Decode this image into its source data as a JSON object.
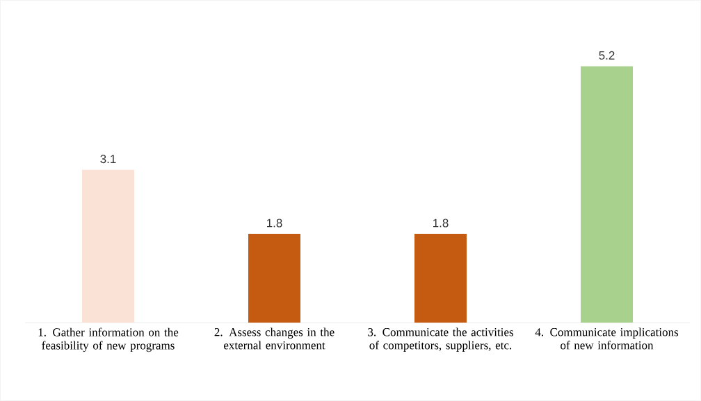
{
  "chart_data": {
    "type": "bar",
    "categories": [
      "1. Gather information on the feasibility of new programs",
      "2. Assess changes in the external environment",
      "3. Communicate the activities of competitors, suppliers, etc.",
      "4. Communicate implications of new information"
    ],
    "values": [
      3.1,
      1.8,
      1.8,
      5.2
    ],
    "colors": [
      "#fae3d6",
      "#c55a11",
      "#c55a11",
      "#a9d18e"
    ],
    "ylim": [
      0,
      6.5
    ],
    "data_labels": true
  }
}
